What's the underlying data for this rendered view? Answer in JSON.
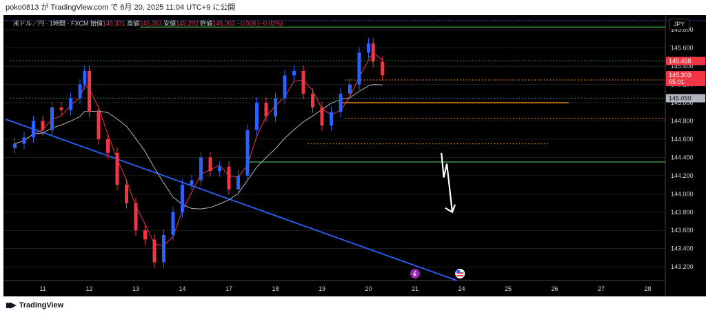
{
  "header": {
    "published_by": "poko0813 が TradingView.com で 6月 20, 2025 11:04 UTC+9 に公開"
  },
  "legend": {
    "symbol": "米ドル／円 · 1時間 · FXCM",
    "open_label": "始値",
    "open_value": "145.331",
    "high_label": "高値",
    "high_value": "145.353",
    "low_label": "安値",
    "low_value": "145.292",
    "close_label": "終値",
    "close_value": "145.303",
    "change": "−0.028 (−0.02%)"
  },
  "currency_button": "JPY",
  "footer": {
    "brand": "TradingView"
  },
  "colors": {
    "bull": "#2962ff",
    "bear": "#f23645",
    "ma_short": "#f23645",
    "ma_long": "#b2b5be",
    "trendline": "#2962ff",
    "support": "#4caf50",
    "orange": "#ff9800",
    "arrow": "#ffffff"
  },
  "chart_data": {
    "type": "candlestick",
    "ylim": [
      143.05,
      145.9
    ],
    "y_ticks": [
      143.2,
      143.4,
      143.6,
      143.8,
      144.0,
      144.2,
      144.4,
      144.6,
      144.8,
      145.0,
      145.2,
      145.4,
      145.6,
      145.8
    ],
    "y_tick_labels": [
      "143.200",
      "143.400",
      "143.600",
      "143.800",
      "144.000",
      "144.200",
      "144.400",
      "144.600",
      "144.800",
      "145.000",
      "145.200",
      "145.400",
      "145.600",
      "145.800"
    ],
    "x_ticks": [
      11,
      12,
      13,
      14,
      17,
      18,
      19,
      20,
      21,
      24,
      25,
      26,
      27,
      28
    ],
    "x_tick_labels": [
      "11",
      "12",
      "13",
      "14",
      "17",
      "18",
      "19",
      "20",
      "21",
      "24",
      "25",
      "26",
      "27",
      "28"
    ],
    "price_labels": [
      {
        "value": 145.458,
        "text": "145.458",
        "bg": "#f23645"
      },
      {
        "value": 145.303,
        "text": "145.303",
        "bg": "#f23645",
        "sub": "55:01"
      },
      {
        "value": 145.05,
        "text": "145.050",
        "bg": "#b2b5be"
      }
    ],
    "ohlc_points": [
      {
        "t": 10.4,
        "c": 144.55
      },
      {
        "t": 10.6,
        "c": 144.62
      },
      {
        "t": 10.8,
        "c": 144.8
      },
      {
        "t": 11.0,
        "c": 144.7
      },
      {
        "t": 11.2,
        "c": 144.95
      },
      {
        "t": 11.4,
        "c": 144.92
      },
      {
        "t": 11.6,
        "c": 145.05
      },
      {
        "t": 11.8,
        "c": 145.2
      },
      {
        "t": 11.9,
        "c": 145.35
      },
      {
        "t": 12.0,
        "c": 144.9
      },
      {
        "t": 12.2,
        "c": 144.6
      },
      {
        "t": 12.4,
        "c": 144.45
      },
      {
        "t": 12.6,
        "c": 144.1
      },
      {
        "t": 12.8,
        "c": 143.9
      },
      {
        "t": 13.0,
        "c": 143.6
      },
      {
        "t": 13.2,
        "c": 143.5
      },
      {
        "t": 13.4,
        "c": 143.25
      },
      {
        "t": 13.6,
        "c": 143.55
      },
      {
        "t": 13.8,
        "c": 143.8
      },
      {
        "t": 14.0,
        "c": 144.1
      },
      {
        "t": 14.2,
        "c": 144.15
      },
      {
        "t": 14.4,
        "c": 144.4
      },
      {
        "t": 14.6,
        "c": 144.25
      },
      {
        "t": 14.8,
        "c": 144.3
      },
      {
        "t": 17.0,
        "c": 144.05
      },
      {
        "t": 17.2,
        "c": 144.2
      },
      {
        "t": 17.4,
        "c": 144.7
      },
      {
        "t": 17.6,
        "c": 145.0
      },
      {
        "t": 17.8,
        "c": 144.85
      },
      {
        "t": 18.0,
        "c": 145.05
      },
      {
        "t": 18.2,
        "c": 145.3
      },
      {
        "t": 18.4,
        "c": 145.35
      },
      {
        "t": 18.6,
        "c": 145.1
      },
      {
        "t": 18.8,
        "c": 144.95
      },
      {
        "t": 19.0,
        "c": 144.75
      },
      {
        "t": 19.2,
        "c": 144.9
      },
      {
        "t": 19.4,
        "c": 145.1
      },
      {
        "t": 19.6,
        "c": 145.2
      },
      {
        "t": 19.8,
        "c": 145.55
      },
      {
        "t": 20.0,
        "c": 145.65
      },
      {
        "t": 20.1,
        "c": 145.45
      },
      {
        "t": 20.3,
        "c": 145.3
      }
    ],
    "horizontal_lines": [
      {
        "value": 145.83,
        "style": "solid",
        "color": "support",
        "x_from": 13.1,
        "x_to": 28.4
      },
      {
        "value": 145.46,
        "style": "dotted",
        "color": "support",
        "x_from": 10.3,
        "x_to": 28.4
      },
      {
        "value": 145.25,
        "style": "dotted",
        "color": "orange",
        "x_from": 19.5,
        "x_to": 28.4
      },
      {
        "value": 145.05,
        "style": "dotted",
        "color": "support",
        "x_from": 10.3,
        "x_to": 28.4
      },
      {
        "value": 145.0,
        "style": "solid",
        "color": "orange",
        "x_from": 19.4,
        "x_to": 26.3
      },
      {
        "value": 144.83,
        "style": "dotted",
        "color": "orange",
        "x_from": 19.5,
        "x_to": 28.4
      },
      {
        "value": 144.55,
        "style": "dotted",
        "color": "orange",
        "x_from": 18.7,
        "x_to": 25.9
      },
      {
        "value": 144.35,
        "style": "solid",
        "color": "support",
        "x_from": 17.4,
        "x_to": 28.4
      }
    ],
    "trendline": [
      {
        "t": 10.2,
        "v": 144.82
      },
      {
        "t": 23.7,
        "v": 143.05
      }
    ],
    "arrow_path": [
      {
        "t": 22.7,
        "v": 144.45
      },
      {
        "t": 22.85,
        "v": 144.18
      },
      {
        "t": 23.05,
        "v": 144.33
      },
      {
        "t": 23.4,
        "v": 143.8
      }
    ],
    "event_icons": [
      {
        "t": 21.0,
        "kind": "lightning-icon"
      },
      {
        "t": 23.9,
        "kind": "us-flag-icon"
      }
    ]
  }
}
